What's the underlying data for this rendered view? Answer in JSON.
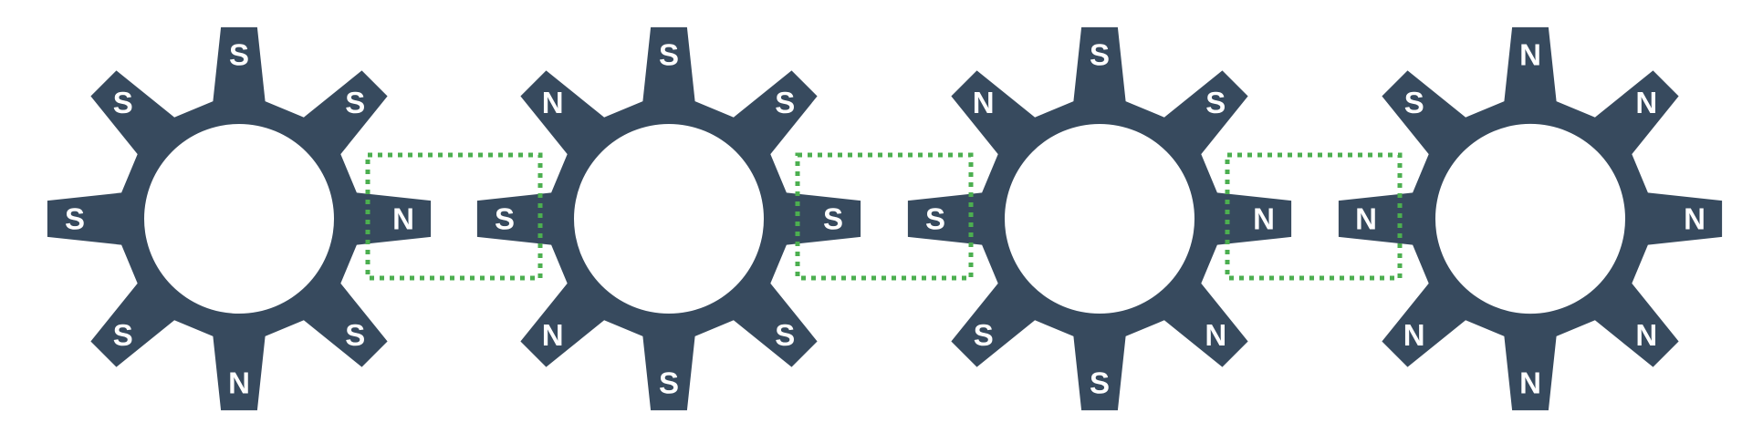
{
  "colors": {
    "gear": "#374a5e",
    "hole": "#ffffff",
    "label": "#ffffff",
    "highlight": "#4caf50",
    "background": "#ffffff"
  },
  "gears": [
    {
      "poles": {
        "top": "S",
        "top_right": "S",
        "right": "N",
        "bottom_right": "S",
        "bottom": "N",
        "bottom_left": "S",
        "left": "S",
        "top_left": "S"
      }
    },
    {
      "poles": {
        "top": "S",
        "top_right": "S",
        "right": "S",
        "bottom_right": "S",
        "bottom": "S",
        "bottom_left": "N",
        "left": "S",
        "top_left": "N"
      }
    },
    {
      "poles": {
        "top": "S",
        "top_right": "S",
        "right": "N",
        "bottom_right": "N",
        "bottom": "S",
        "bottom_left": "S",
        "left": "S",
        "top_left": "N"
      }
    },
    {
      "poles": {
        "top": "N",
        "top_right": "N",
        "right": "N",
        "bottom_right": "N",
        "bottom": "N",
        "bottom_left": "N",
        "left": "N",
        "top_left": "S"
      }
    }
  ],
  "interfaces": [
    {
      "between": [
        1,
        2
      ],
      "left_pole": "N",
      "right_pole": "S"
    },
    {
      "between": [
        2,
        3
      ],
      "left_pole": "S",
      "right_pole": "S"
    },
    {
      "between": [
        3,
        4
      ],
      "left_pole": "N",
      "right_pole": "N"
    }
  ]
}
